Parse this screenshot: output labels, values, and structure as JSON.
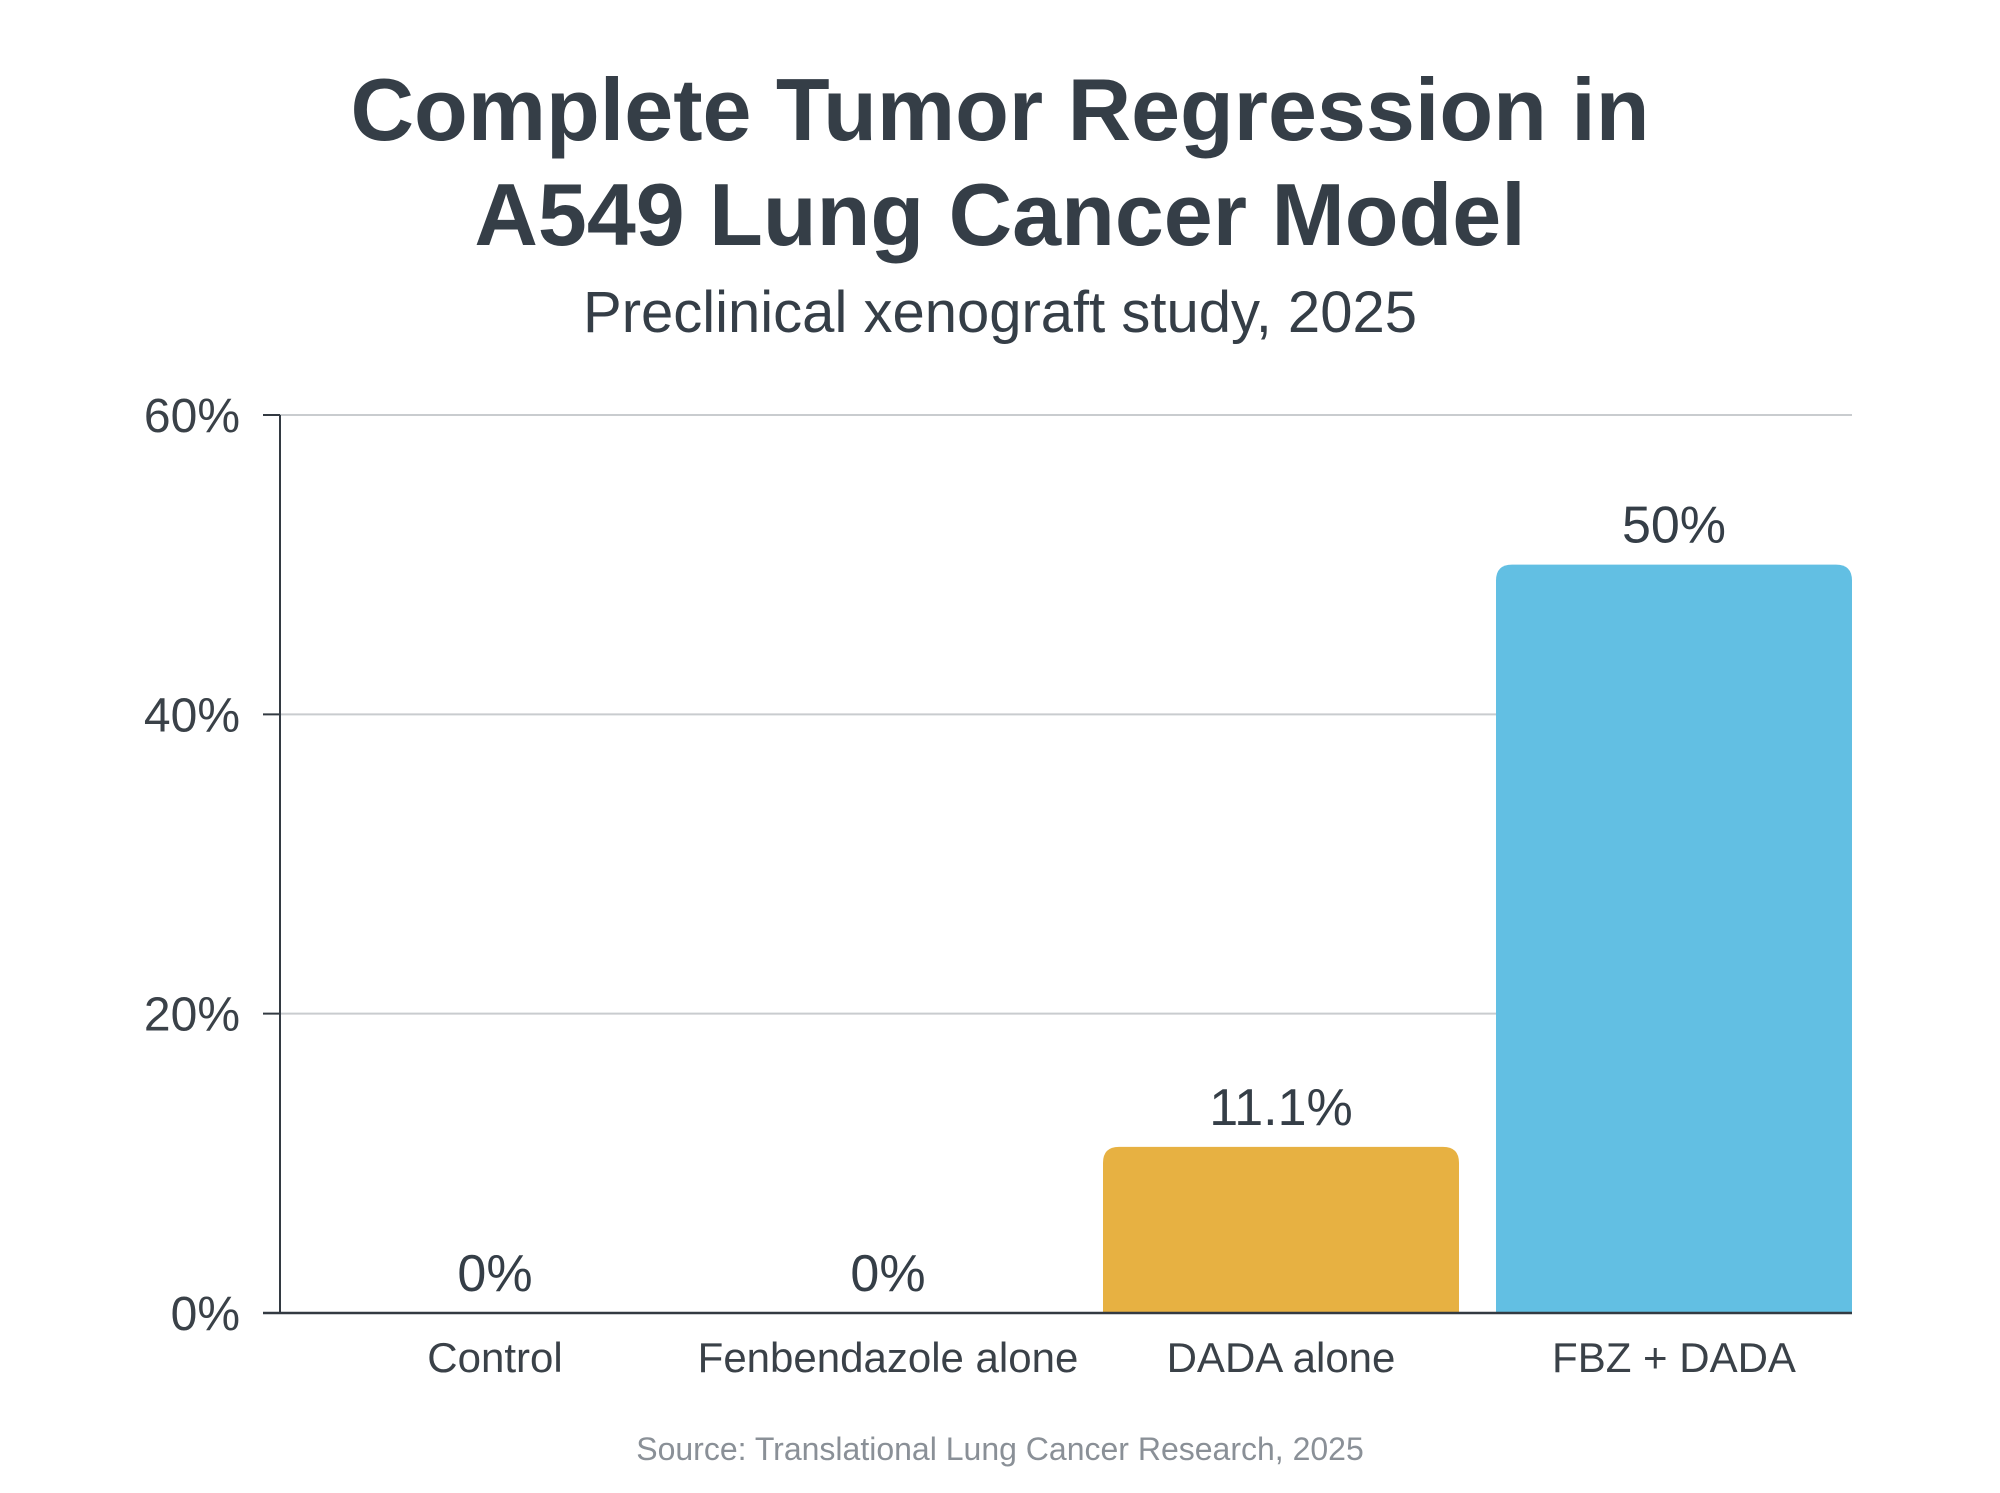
{
  "chart_data": {
    "type": "bar",
    "title_lines": [
      "Complete Tumor Regression in",
      "A549 Lung Cancer Model"
    ],
    "subtitle": "Preclinical xenograft study, 2025",
    "source": "Source: Translational Lung Cancer Research, 2025",
    "categories": [
      "Control",
      "Fenbendazole alone",
      "DADA alone",
      "FBZ + DADA"
    ],
    "values": [
      0,
      0,
      11.1,
      50
    ],
    "value_labels": [
      "0%",
      "0%",
      "11.1%",
      "50%"
    ],
    "colors": [
      "#7f8c8d",
      "#7f8c8d",
      "#e7b142",
      "#62bfe3"
    ],
    "ylim": [
      0,
      60
    ],
    "yticks": [
      0,
      20,
      40,
      60
    ],
    "ytick_labels": [
      "0%",
      "20%",
      "40%",
      "60%"
    ],
    "grid": true,
    "xlabel": "",
    "ylabel": ""
  }
}
